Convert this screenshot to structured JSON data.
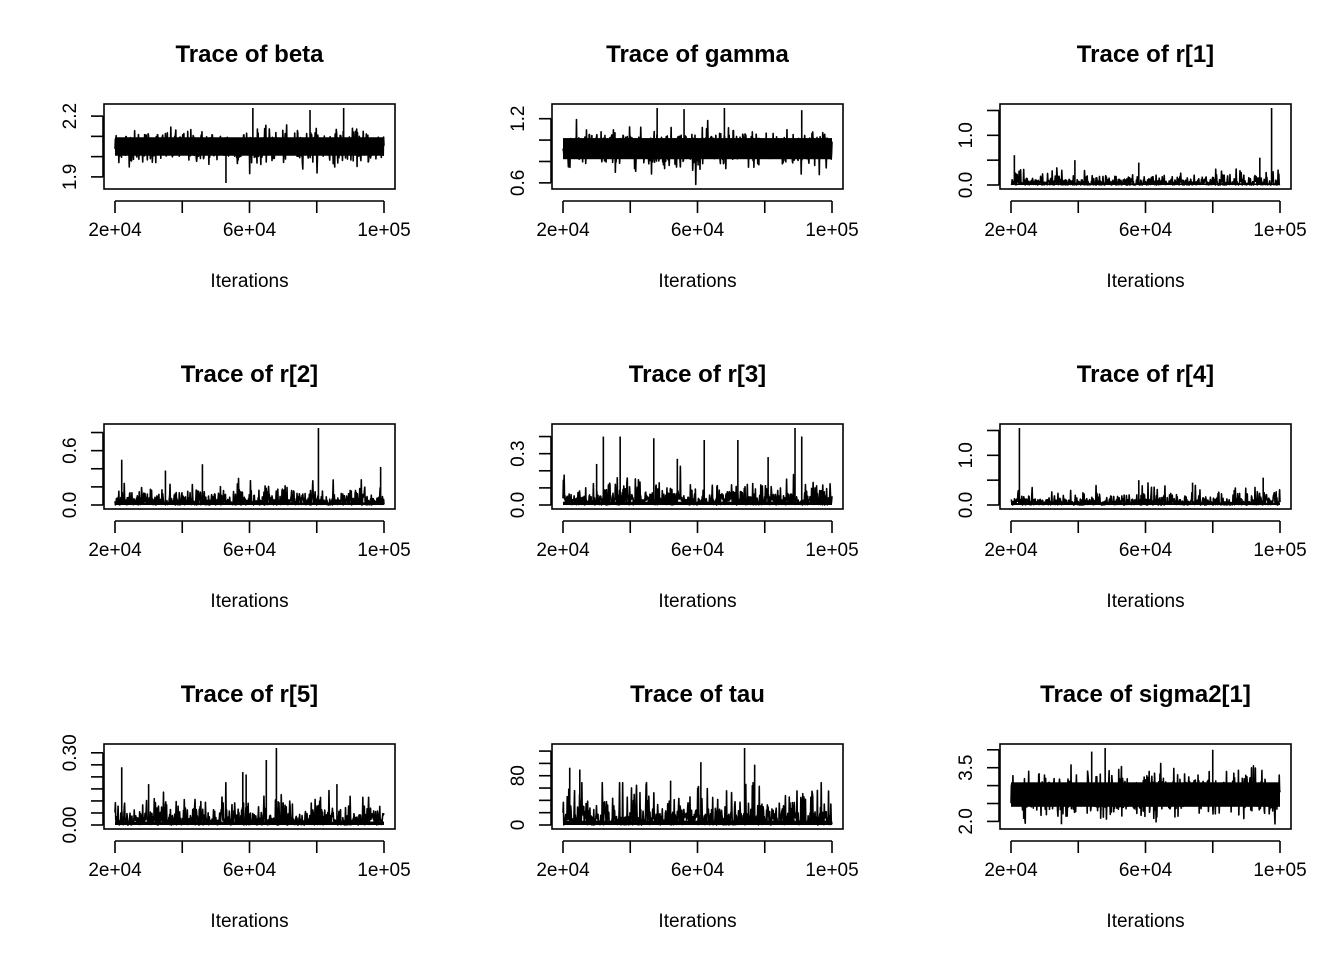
{
  "chart_data": [
    {
      "type": "line",
      "title": "Trace of beta",
      "xlabel": "Iterations",
      "ylabel": "",
      "x_ticks": [
        {
          "v": 20000,
          "label": "2e+04"
        },
        {
          "v": 40000,
          "label": ""
        },
        {
          "v": 60000,
          "label": "6e+04"
        },
        {
          "v": 80000,
          "label": ""
        },
        {
          "v": 100000,
          "label": "1e+05"
        }
      ],
      "y_ticks": [
        {
          "v": 1.9,
          "label": "1.9"
        },
        {
          "v": 2.0,
          "label": ""
        },
        {
          "v": 2.1,
          "label": ""
        },
        {
          "v": 2.2,
          "label": "2.2"
        }
      ],
      "xlim": [
        20000,
        100000
      ],
      "ylim": [
        1.86,
        2.24
      ],
      "series": [
        {
          "x_range": [
            20000,
            100000
          ],
          "center": 2.05,
          "spread": 0.12,
          "min": 1.86,
          "max": 2.24,
          "spikes": [
            {
              "x": 61000,
              "y": 2.24
            },
            {
              "x": 88000,
              "y": 2.24
            },
            {
              "x": 78000,
              "y": 2.23
            },
            {
              "x": 53000,
              "y": 1.87
            }
          ]
        }
      ]
    },
    {
      "type": "line",
      "title": "Trace of gamma",
      "xlabel": "Iterations",
      "ylabel": "",
      "x_ticks": [
        {
          "v": 20000,
          "label": "2e+04"
        },
        {
          "v": 40000,
          "label": ""
        },
        {
          "v": 60000,
          "label": "6e+04"
        },
        {
          "v": 80000,
          "label": ""
        },
        {
          "v": 100000,
          "label": "1e+05"
        }
      ],
      "y_ticks": [
        {
          "v": 0.6,
          "label": "0.6"
        },
        {
          "v": 0.8,
          "label": ""
        },
        {
          "v": 1.0,
          "label": ""
        },
        {
          "v": 1.2,
          "label": "1.2"
        }
      ],
      "xlim": [
        20000,
        100000
      ],
      "ylim": [
        0.58,
        1.3
      ],
      "series": [
        {
          "x_range": [
            20000,
            100000
          ],
          "center": 0.92,
          "spread": 0.26,
          "min": 0.58,
          "max": 1.3,
          "spikes": [
            {
              "x": 48000,
              "y": 1.3
            },
            {
              "x": 56000,
              "y": 1.29
            },
            {
              "x": 68000,
              "y": 1.3
            },
            {
              "x": 91000,
              "y": 1.28
            }
          ]
        }
      ]
    },
    {
      "type": "line",
      "title": "Trace of r[1]",
      "xlabel": "Iterations",
      "ylabel": "",
      "x_ticks": [
        {
          "v": 20000,
          "label": "2e+04"
        },
        {
          "v": 40000,
          "label": ""
        },
        {
          "v": 60000,
          "label": "6e+04"
        },
        {
          "v": 80000,
          "label": ""
        },
        {
          "v": 100000,
          "label": "1e+05"
        }
      ],
      "y_ticks": [
        {
          "v": 0.0,
          "label": "0.0"
        },
        {
          "v": 0.5,
          "label": ""
        },
        {
          "v": 1.0,
          "label": "1.0"
        },
        {
          "v": 1.5,
          "label": ""
        }
      ],
      "xlim": [
        20000,
        100000
      ],
      "ylim": [
        0,
        1.55
      ],
      "series": [
        {
          "x_range": [
            20000,
            100000
          ],
          "center": 0.07,
          "spread": 0.1,
          "min": 0,
          "max": 1.55,
          "spikes": [
            {
              "x": 97500,
              "y": 1.55
            },
            {
              "x": 21000,
              "y": 0.6
            },
            {
              "x": 39000,
              "y": 0.5
            },
            {
              "x": 94000,
              "y": 0.55
            },
            {
              "x": 58000,
              "y": 0.45
            }
          ]
        }
      ]
    },
    {
      "type": "line",
      "title": "Trace of r[2]",
      "xlabel": "Iterations",
      "ylabel": "",
      "x_ticks": [
        {
          "v": 20000,
          "label": "2e+04"
        },
        {
          "v": 40000,
          "label": ""
        },
        {
          "v": 60000,
          "label": "6e+04"
        },
        {
          "v": 80000,
          "label": ""
        },
        {
          "v": 100000,
          "label": "1e+05"
        }
      ],
      "y_ticks": [
        {
          "v": 0.0,
          "label": "0.0"
        },
        {
          "v": 0.2,
          "label": ""
        },
        {
          "v": 0.4,
          "label": ""
        },
        {
          "v": 0.6,
          "label": "0.6"
        },
        {
          "v": 0.8,
          "label": ""
        }
      ],
      "xlim": [
        20000,
        100000
      ],
      "ylim": [
        0,
        0.85
      ],
      "series": [
        {
          "x_range": [
            20000,
            100000
          ],
          "center": 0.05,
          "spread": 0.09,
          "min": 0,
          "max": 0.85,
          "spikes": [
            {
              "x": 80500,
              "y": 0.85
            },
            {
              "x": 22000,
              "y": 0.5
            },
            {
              "x": 46000,
              "y": 0.45
            },
            {
              "x": 99000,
              "y": 0.42
            },
            {
              "x": 35000,
              "y": 0.38
            }
          ]
        }
      ]
    },
    {
      "type": "line",
      "title": "Trace of r[3]",
      "xlabel": "Iterations",
      "ylabel": "",
      "x_ticks": [
        {
          "v": 20000,
          "label": "2e+04"
        },
        {
          "v": 40000,
          "label": ""
        },
        {
          "v": 60000,
          "label": "6e+04"
        },
        {
          "v": 80000,
          "label": ""
        },
        {
          "v": 100000,
          "label": "1e+05"
        }
      ],
      "y_ticks": [
        {
          "v": 0.0,
          "label": "0.0"
        },
        {
          "v": 0.1,
          "label": ""
        },
        {
          "v": 0.2,
          "label": ""
        },
        {
          "v": 0.3,
          "label": "0.3"
        },
        {
          "v": 0.4,
          "label": ""
        }
      ],
      "xlim": [
        20000,
        100000
      ],
      "ylim": [
        0,
        0.45
      ],
      "series": [
        {
          "x_range": [
            20000,
            100000
          ],
          "center": 0.04,
          "spread": 0.06,
          "min": 0,
          "max": 0.45,
          "spikes": [
            {
              "x": 89000,
              "y": 0.45
            },
            {
              "x": 32000,
              "y": 0.4
            },
            {
              "x": 37000,
              "y": 0.4
            },
            {
              "x": 47000,
              "y": 0.39
            },
            {
              "x": 62000,
              "y": 0.38
            },
            {
              "x": 72000,
              "y": 0.38
            },
            {
              "x": 91000,
              "y": 0.4
            },
            {
              "x": 30000,
              "y": 0.24
            },
            {
              "x": 54000,
              "y": 0.27
            },
            {
              "x": 81000,
              "y": 0.28
            }
          ]
        }
      ]
    },
    {
      "type": "line",
      "title": "Trace of r[4]",
      "xlabel": "Iterations",
      "ylabel": "",
      "x_ticks": [
        {
          "v": 20000,
          "label": "2e+04"
        },
        {
          "v": 40000,
          "label": ""
        },
        {
          "v": 60000,
          "label": "6e+04"
        },
        {
          "v": 80000,
          "label": ""
        },
        {
          "v": 100000,
          "label": "1e+05"
        }
      ],
      "y_ticks": [
        {
          "v": 0.0,
          "label": "0.0"
        },
        {
          "v": 0.5,
          "label": ""
        },
        {
          "v": 1.0,
          "label": "1.0"
        },
        {
          "v": 1.5,
          "label": ""
        }
      ],
      "xlim": [
        20000,
        100000
      ],
      "ylim": [
        0,
        1.55
      ],
      "series": [
        {
          "x_range": [
            20000,
            100000
          ],
          "center": 0.08,
          "spread": 0.12,
          "min": 0,
          "max": 1.55,
          "spikes": [
            {
              "x": 22500,
              "y": 1.55
            },
            {
              "x": 58000,
              "y": 0.5
            },
            {
              "x": 95000,
              "y": 0.55
            },
            {
              "x": 74000,
              "y": 0.45
            }
          ]
        }
      ]
    },
    {
      "type": "line",
      "title": "Trace of r[5]",
      "xlabel": "Iterations",
      "ylabel": "",
      "x_ticks": [
        {
          "v": 20000,
          "label": "2e+04"
        },
        {
          "v": 40000,
          "label": ""
        },
        {
          "v": 60000,
          "label": "6e+04"
        },
        {
          "v": 80000,
          "label": ""
        },
        {
          "v": 100000,
          "label": "1e+05"
        }
      ],
      "y_ticks": [
        {
          "v": 0.0,
          "label": "0.00"
        },
        {
          "v": 0.05,
          "label": ""
        },
        {
          "v": 0.1,
          "label": ""
        },
        {
          "v": 0.15,
          "label": ""
        },
        {
          "v": 0.2,
          "label": ""
        },
        {
          "v": 0.25,
          "label": ""
        },
        {
          "v": 0.3,
          "label": "0.30"
        }
      ],
      "xlim": [
        20000,
        100000
      ],
      "ylim": [
        0,
        0.32
      ],
      "series": [
        {
          "x_range": [
            20000,
            100000
          ],
          "center": 0.025,
          "spread": 0.045,
          "min": 0,
          "max": 0.32,
          "spikes": [
            {
              "x": 68000,
              "y": 0.32
            },
            {
              "x": 65000,
              "y": 0.27
            },
            {
              "x": 22000,
              "y": 0.24
            },
            {
              "x": 58000,
              "y": 0.22
            },
            {
              "x": 59000,
              "y": 0.21
            },
            {
              "x": 30000,
              "y": 0.17
            },
            {
              "x": 86000,
              "y": 0.17
            }
          ]
        }
      ]
    },
    {
      "type": "line",
      "title": "Trace of tau",
      "xlabel": "Iterations",
      "ylabel": "",
      "x_ticks": [
        {
          "v": 20000,
          "label": "2e+04"
        },
        {
          "v": 40000,
          "label": ""
        },
        {
          "v": 60000,
          "label": "6e+04"
        },
        {
          "v": 80000,
          "label": ""
        },
        {
          "v": 100000,
          "label": "1e+05"
        }
      ],
      "y_ticks": [
        {
          "v": 0,
          "label": "0"
        },
        {
          "v": 20,
          "label": ""
        },
        {
          "v": 40,
          "label": ""
        },
        {
          "v": 60,
          "label": ""
        },
        {
          "v": 80,
          "label": "80"
        },
        {
          "v": 100,
          "label": ""
        },
        {
          "v": 120,
          "label": ""
        }
      ],
      "xlim": [
        20000,
        100000
      ],
      "ylim": [
        0,
        125
      ],
      "series": [
        {
          "x_range": [
            20000,
            100000
          ],
          "center": 12,
          "spread": 22,
          "min": 0,
          "max": 125,
          "spikes": [
            {
              "x": 74000,
              "y": 125
            },
            {
              "x": 61000,
              "y": 102
            },
            {
              "x": 77000,
              "y": 98
            },
            {
              "x": 22000,
              "y": 93
            },
            {
              "x": 25000,
              "y": 90
            },
            {
              "x": 52000,
              "y": 72
            }
          ]
        }
      ]
    },
    {
      "type": "line",
      "title": "Trace of sigma2[1]",
      "xlabel": "Iterations",
      "ylabel": "",
      "x_ticks": [
        {
          "v": 20000,
          "label": "2e+04"
        },
        {
          "v": 40000,
          "label": ""
        },
        {
          "v": 60000,
          "label": "6e+04"
        },
        {
          "v": 80000,
          "label": ""
        },
        {
          "v": 100000,
          "label": "1e+05"
        }
      ],
      "y_ticks": [
        {
          "v": 2.0,
          "label": "2.0"
        },
        {
          "v": 2.5,
          "label": ""
        },
        {
          "v": 3.0,
          "label": ""
        },
        {
          "v": 3.5,
          "label": "3.5"
        },
        {
          "v": 4.0,
          "label": ""
        }
      ],
      "xlim": [
        20000,
        100000
      ],
      "ylim": [
        1.9,
        4.05
      ],
      "series": [
        {
          "x_range": [
            20000,
            100000
          ],
          "center": 2.75,
          "spread": 0.9,
          "min": 1.9,
          "max": 4.05,
          "spikes": [
            {
              "x": 48000,
              "y": 4.05
            },
            {
              "x": 80000,
              "y": 4.0
            },
            {
              "x": 44000,
              "y": 3.95
            },
            {
              "x": 35000,
              "y": 1.92
            }
          ]
        }
      ]
    }
  ]
}
